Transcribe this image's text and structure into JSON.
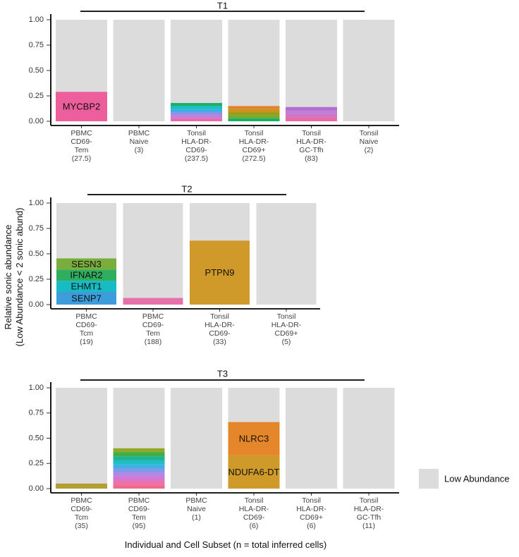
{
  "ylabel": "Relative sonic abundance\n(Low Abundance < 2 sonic abund)",
  "xlabel": "Individual and Cell Subset (n = total inferred cells)",
  "legend": {
    "label": "Low Abundance",
    "color": "#DCDCDC",
    "placement": "right"
  },
  "chart_data": [
    {
      "type": "bar",
      "subtype": "stacked",
      "title": "T1",
      "ylim": [
        0,
        1
      ],
      "yticks": [
        "0.00",
        "0.25",
        "0.50",
        "0.75",
        "1.00"
      ],
      "categories": [
        "PBMC\nCD69-\nTem\n(27.5)",
        "PBMC\nNaive\n(3)",
        "Tonsil\nHLA-DR-\nCD69-\n(237.5)",
        "Tonsil\nHLA-DR-\nCD69+\n(272.5)",
        "Tonsil\nHLA-DR-\nGC-Tfh\n(83)",
        "Tonsil\nNaive\n(2)"
      ],
      "bars": [
        {
          "segments": [
            {
              "label": "MYCBP2",
              "value": 0.29,
              "color": "#EC5F9C"
            }
          ]
        },
        {
          "segments": []
        },
        {
          "segments": [
            {
              "value": 0.03,
              "color": "#E86CA7"
            },
            {
              "value": 0.03,
              "color": "#C77CDD"
            },
            {
              "value": 0.03,
              "color": "#8D90E8"
            },
            {
              "value": 0.03,
              "color": "#3FAEE5"
            },
            {
              "value": 0.03,
              "color": "#18BFC4"
            },
            {
              "value": 0.03,
              "color": "#1AAE6A"
            }
          ]
        },
        {
          "segments": [
            {
              "value": 0.03,
              "color": "#1FAE6A"
            },
            {
              "value": 0.03,
              "color": "#6FAE2E"
            },
            {
              "value": 0.03,
              "color": "#9E9B1A"
            },
            {
              "value": 0.03,
              "color": "#C9951E"
            },
            {
              "value": 0.03,
              "color": "#E4822A"
            }
          ]
        },
        {
          "segments": [
            {
              "value": 0.035,
              "color": "#E96AA5"
            },
            {
              "value": 0.035,
              "color": "#D574C4"
            },
            {
              "value": 0.035,
              "color": "#C07ED6"
            },
            {
              "value": 0.035,
              "color": "#B26FD2"
            }
          ]
        },
        {
          "segments": []
        }
      ]
    },
    {
      "type": "bar",
      "subtype": "stacked",
      "title": "T2",
      "ylim": [
        0,
        1
      ],
      "yticks": [
        "0.00",
        "0.25",
        "0.50",
        "0.75",
        "1.00"
      ],
      "categories": [
        "PBMC\nCD69-\nTcm\n(19)",
        "PBMC\nCD69-\nTem\n(188)",
        "Tonsil\nHLA-DR-\nCD69-\n(33)",
        "Tonsil\nHLA-DR-\nCD69+\n(5)"
      ],
      "bars": [
        {
          "segments": [
            {
              "label": "SENP7",
              "value": 0.125,
              "color": "#3C9DDA"
            },
            {
              "label": "EHMT1",
              "value": 0.11,
              "color": "#17BBC4"
            },
            {
              "label": "IFNAR2",
              "value": 0.11,
              "color": "#2EAE5E"
            },
            {
              "label": "SESN3",
              "value": 0.11,
              "color": "#7AAE3C"
            }
          ]
        },
        {
          "segments": [
            {
              "value": 0.065,
              "color": "#E770A8"
            }
          ]
        },
        {
          "segments": [
            {
              "label": "PTPN9",
              "value": 0.63,
              "color": "#CF9A29"
            }
          ]
        },
        {
          "segments": []
        }
      ]
    },
    {
      "type": "bar",
      "subtype": "stacked",
      "title": "T3",
      "ylim": [
        0,
        1
      ],
      "yticks": [
        "0.00",
        "0.25",
        "0.50",
        "0.75",
        "1.00"
      ],
      "categories": [
        "PBMC\nCD69-\nTcm\n(35)",
        "PBMC\nCD69-\nTem\n(95)",
        "PBMC\nNaive\n(1)",
        "Tonsil\nHLA-DR-\nCD69-\n(6)",
        "Tonsil\nHLA-DR-\nCD69+\n(6)",
        "Tonsil\nHLA-DR-\nGC-Tfh\n(11)"
      ],
      "bars": [
        {
          "segments": [
            {
              "value": 0.05,
              "color": "#B3A030"
            }
          ]
        },
        {
          "segments": [
            {
              "value": 0.04,
              "color": "#F06A8D"
            },
            {
              "value": 0.04,
              "color": "#EC6FB0"
            },
            {
              "value": 0.04,
              "color": "#D477D2"
            },
            {
              "value": 0.04,
              "color": "#B286E2"
            },
            {
              "value": 0.04,
              "color": "#7F98EA"
            },
            {
              "value": 0.04,
              "color": "#3FB0E4"
            },
            {
              "value": 0.04,
              "color": "#1EC0C6"
            },
            {
              "value": 0.04,
              "color": "#1FB38F"
            },
            {
              "value": 0.04,
              "color": "#3FAE4A"
            },
            {
              "value": 0.04,
              "color": "#8FA828"
            }
          ]
        },
        {
          "segments": []
        },
        {
          "segments": [
            {
              "label": "NDUFA6-DT",
              "value": 0.33,
              "color": "#CF9A29"
            },
            {
              "label": "NLRC3",
              "value": 0.33,
              "color": "#E6862A"
            }
          ]
        },
        {
          "segments": []
        },
        {
          "segments": []
        }
      ]
    }
  ]
}
